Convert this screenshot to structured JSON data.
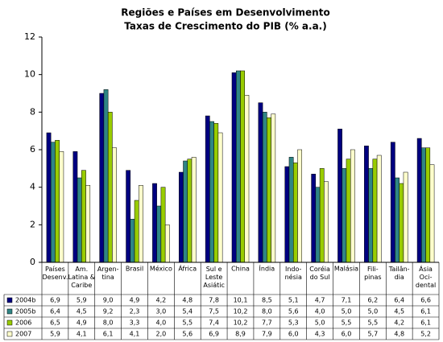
{
  "chart_data": {
    "type": "bar",
    "title": "Regiões e Países em Desenvolvimento",
    "subtitle": "Taxas de Crescimento do PIB (% a.a.)",
    "categories": [
      "Países\nDesenv.",
      "Am.\nLatina &\nCaribe",
      "Argen-\ntina",
      "Brasil",
      "México",
      "África",
      "Sul e\nLeste\nAsiátic",
      "China",
      "Índia",
      "Indo-\nnésia",
      "Coréia\ndo Sul",
      "Malásia",
      "Fili-\npinas",
      "Tailân-\ndia",
      "Ásia\nOci-\ndental"
    ],
    "series": [
      {
        "name": "2004b",
        "color": "#000080",
        "values": [
          6.9,
          5.9,
          9.0,
          4.9,
          4.2,
          4.8,
          7.8,
          10.1,
          8.5,
          5.1,
          4.7,
          7.1,
          6.2,
          6.4,
          6.6
        ],
        "value_labels": [
          "6,9",
          "5,9",
          "9,0",
          "4,9",
          "4,2",
          "4,8",
          "7,8",
          "10,1",
          "8,5",
          "5,1",
          "4,7",
          "7,1",
          "6,2",
          "6,4",
          "6,6"
        ]
      },
      {
        "name": "2005b",
        "color": "#2f8585",
        "values": [
          6.4,
          4.5,
          9.2,
          2.3,
          3.0,
          5.4,
          7.5,
          10.2,
          8.0,
          5.6,
          4.0,
          5.0,
          5.0,
          4.5,
          6.1
        ],
        "value_labels": [
          "6,4",
          "4,5",
          "9,2",
          "2,3",
          "3,0",
          "5,4",
          "7,5",
          "10,2",
          "8,0",
          "5,6",
          "4,0",
          "5,0",
          "5,0",
          "4,5",
          "6,1"
        ]
      },
      {
        "name": "2006",
        "color": "#99cc00",
        "values": [
          6.5,
          4.9,
          8.0,
          3.3,
          4.0,
          5.5,
          7.4,
          10.2,
          7.7,
          5.3,
          5.0,
          5.5,
          5.5,
          4.2,
          6.1
        ],
        "value_labels": [
          "6,5",
          "4,9",
          "8,0",
          "3,3",
          "4,0",
          "5,5",
          "7,4",
          "10,2",
          "7,7",
          "5,3",
          "5,0",
          "5,5",
          "5,5",
          "4,2",
          "6,1"
        ]
      },
      {
        "name": "2007",
        "color": "#ffffcc",
        "values": [
          5.9,
          4.1,
          6.1,
          4.1,
          2.0,
          5.6,
          6.9,
          8.9,
          7.9,
          6.0,
          4.3,
          6.0,
          5.7,
          4.8,
          5.2
        ],
        "value_labels": [
          "5,9",
          "4,1",
          "6,1",
          "4,1",
          "2,0",
          "5,6",
          "6,9",
          "8,9",
          "7,9",
          "6,0",
          "4,3",
          "6,0",
          "5,7",
          "4,8",
          "5,2"
        ]
      }
    ],
    "ylim": [
      0,
      12
    ],
    "yticks": [
      0,
      2,
      4,
      6,
      8,
      10,
      12
    ],
    "grid": false
  }
}
